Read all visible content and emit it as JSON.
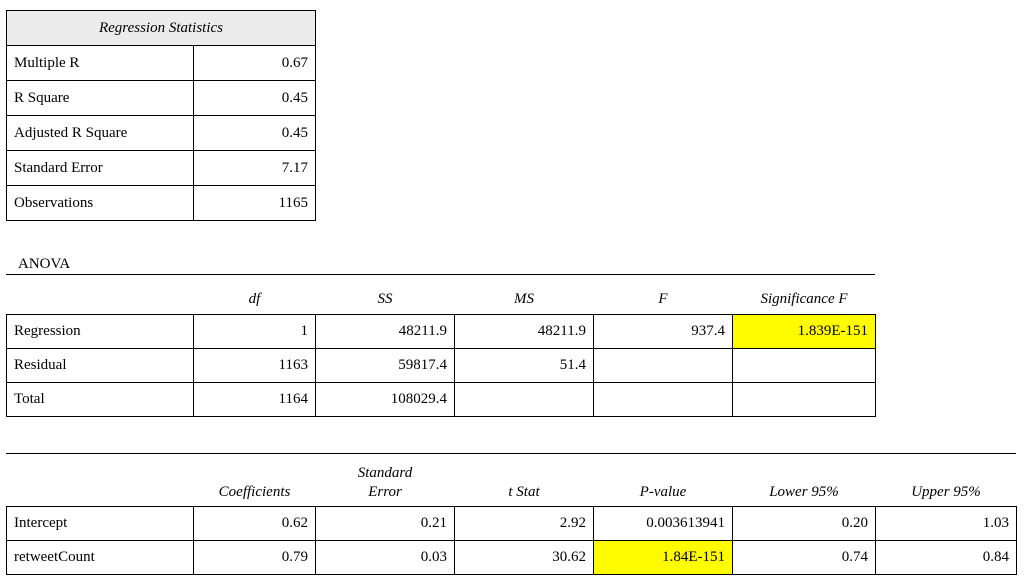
{
  "regression_statistics": {
    "header": "Regression Statistics",
    "rows": [
      {
        "label": "Multiple R",
        "value": "0.67"
      },
      {
        "label": "R Square",
        "value": "0.45"
      },
      {
        "label": "Adjusted R Square",
        "value": "0.45"
      },
      {
        "label": "Standard Error",
        "value": "7.17"
      },
      {
        "label": "Observations",
        "value": "1165"
      }
    ]
  },
  "anova": {
    "title": "ANOVA",
    "headers": [
      "",
      "df",
      "SS",
      "MS",
      "F",
      "Significance F"
    ],
    "rows": [
      {
        "label": "Regression",
        "df": "1",
        "ss": "48211.9",
        "ms": "48211.9",
        "f": "937.4",
        "sig_f": "1.839E-151"
      },
      {
        "label": "Residual",
        "df": "1163",
        "ss": "59817.4",
        "ms": "51.4",
        "f": "",
        "sig_f": ""
      },
      {
        "label": "Total",
        "df": "1164",
        "ss": "108029.4",
        "ms": "",
        "f": "",
        "sig_f": ""
      }
    ]
  },
  "coefficients": {
    "headers": {
      "coefficients": "Coefficients",
      "standard_error_line1": "Standard",
      "standard_error_line2": "Error",
      "t_stat": "t Stat",
      "p_value": "P-value",
      "lower_95": "Lower 95%",
      "upper_95": "Upper 95%"
    },
    "rows": [
      {
        "label": "Intercept",
        "coef": "0.62",
        "se": "0.21",
        "t": "2.92",
        "p": "0.003613941",
        "lower": "0.20",
        "upper": "1.03"
      },
      {
        "label": "retweetCount",
        "coef": "0.79",
        "se": "0.03",
        "t": "30.62",
        "p": "1.84E-151",
        "lower": "0.74",
        "upper": "0.84"
      }
    ]
  },
  "colors": {
    "highlight": "#fffc00",
    "header_bg": "#ececec"
  }
}
